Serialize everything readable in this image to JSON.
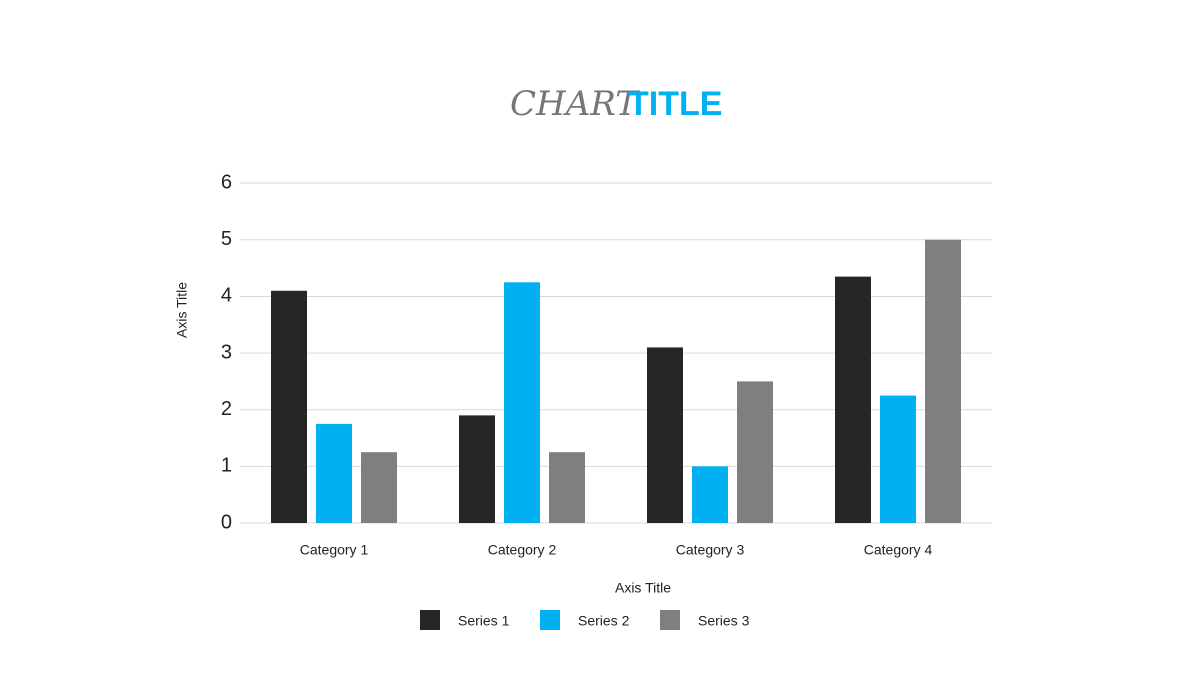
{
  "chart_data": {
    "type": "bar",
    "title": [
      "CHART",
      "TITLE"
    ],
    "x_axis_title": "Axis Title",
    "y_axis_title": "Axis Title",
    "categories": [
      "Category 1",
      "Category 2",
      "Category 3",
      "Category 4"
    ],
    "series": [
      {
        "name": "Series 1",
        "color": "#262626",
        "values": [
          4.1,
          1.9,
          3.1,
          4.35
        ]
      },
      {
        "name": "Series 2",
        "color": "#00b0f0",
        "values": [
          1.75,
          4.25,
          1.0,
          2.25
        ]
      },
      {
        "name": "Series 3",
        "color": "#7f7f7f",
        "values": [
          1.25,
          1.25,
          2.5,
          5.0
        ]
      }
    ],
    "ylim": [
      0,
      6.25
    ],
    "yticks": [
      0,
      1,
      2,
      3,
      4,
      5,
      6
    ],
    "grid": true,
    "legend": "bottom"
  }
}
